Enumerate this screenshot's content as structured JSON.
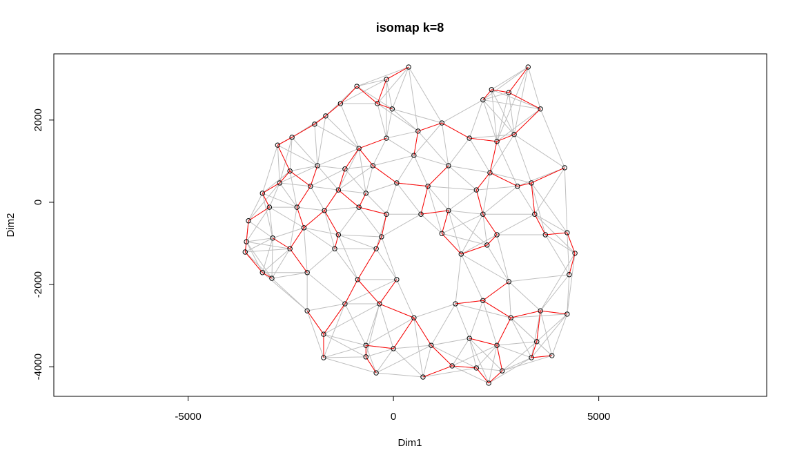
{
  "chart_data": {
    "type": "scatter",
    "title": "isomap k=8",
    "xlabel": "Dim1",
    "ylabel": "Dim2",
    "xlim": [
      -8270,
      9090
    ],
    "ylim": [
      -4720,
      3610
    ],
    "xticks": [
      -5000,
      0,
      5000
    ],
    "yticks": [
      -4000,
      -2000,
      0,
      2000
    ],
    "color": "#000000",
    "edge_color": "#bebebe",
    "tree_color": "#ff0000",
    "x": [
      370,
      3280,
      -170,
      -890,
      2390,
      2810,
      -1290,
      -390,
      2180,
      3580,
      -1650,
      -30,
      1180,
      600,
      -1920,
      -2470,
      -2820,
      -840,
      -170,
      1850,
      2520,
      2940,
      -2520,
      -1850,
      -1180,
      -500,
      500,
      1340,
      2350,
      4170,
      -3190,
      -2770,
      -2020,
      -1340,
      -670,
      80,
      840,
      2020,
      3020,
      3360,
      -3530,
      -3020,
      -2350,
      -1680,
      -840,
      -170,
      670,
      1340,
      2180,
      3440,
      -3580,
      -2940,
      -2180,
      -1340,
      -290,
      1180,
      2520,
      3700,
      4230,
      -3610,
      -3190,
      -2520,
      -1430,
      -420,
      1650,
      2280,
      4420,
      -2960,
      -2100,
      -870,
      80,
      2810,
      4280,
      -2100,
      -1180,
      -340,
      500,
      1510,
      2180,
      2860,
      3580,
      4230,
      -1700,
      -670,
      0,
      920,
      1850,
      2520,
      3490,
      3860,
      -1700,
      -670,
      720,
      1430,
      2020,
      2320,
      2650,
      -420,
      3360
    ],
    "y": [
      3290,
      3290,
      2990,
      2820,
      2740,
      2670,
      2400,
      2400,
      2490,
      2270,
      2100,
      2270,
      1930,
      1730,
      1900,
      1580,
      1390,
      1310,
      1560,
      1560,
      1480,
      1650,
      760,
      890,
      810,
      890,
      1140,
      890,
      720,
      840,
      220,
      470,
      390,
      300,
      220,
      470,
      390,
      300,
      390,
      470,
      -450,
      -120,
      -120,
      -200,
      -120,
      -290,
      -290,
      -200,
      -290,
      -290,
      -960,
      -870,
      -620,
      -790,
      -840,
      -760,
      -790,
      -790,
      -740,
      -1210,
      -1710,
      -1130,
      -1130,
      -1130,
      -1260,
      -1040,
      -1240,
      -1850,
      -1710,
      -1880,
      -1880,
      -1930,
      -1760,
      -2640,
      -2470,
      -2470,
      -2810,
      -2470,
      -2390,
      -2810,
      -2640,
      -2720,
      -3210,
      -3480,
      -3560,
      -3480,
      -3310,
      -3480,
      -3390,
      -3730,
      -3780,
      -3760,
      -4250,
      -3980,
      -4030,
      -4400,
      -4100,
      -4150,
      -3780
    ]
  }
}
